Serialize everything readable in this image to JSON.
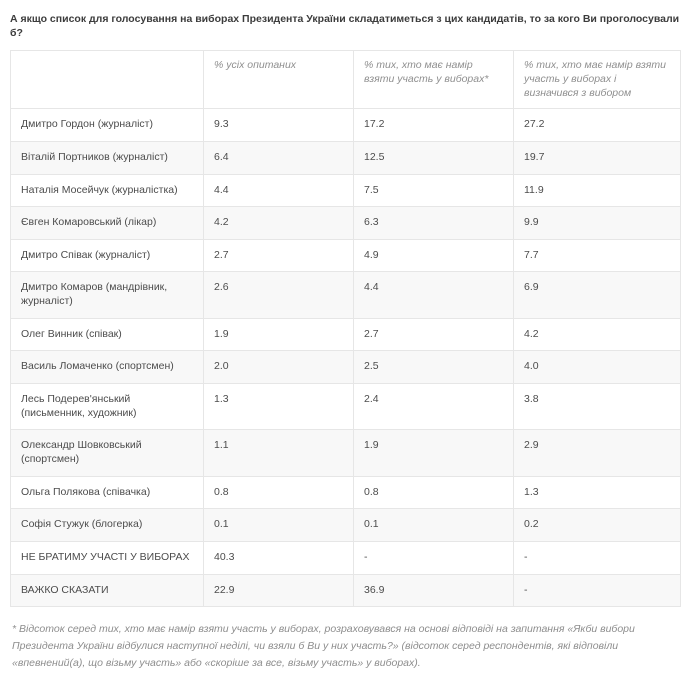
{
  "title": "А якщо список для голосування на виборах Президента України складатиметься з цих кандидатів, то за кого Ви проголосували б?",
  "table": {
    "columns": [
      "",
      "% усіх опитаних",
      "% тих, хто має намір взяти участь у виборах*",
      "% тих, хто має намір взяти участь у виборах і визначився з вибором"
    ],
    "rows": [
      [
        "Дмитро Гордон (журналіст)",
        "9.3",
        "17.2",
        "27.2"
      ],
      [
        "Віталій Портников (журналіст)",
        "6.4",
        "12.5",
        "19.7"
      ],
      [
        "Наталія Мосейчук (журналістка)",
        "4.4",
        "7.5",
        "11.9"
      ],
      [
        "Євген Комаровський (лікар)",
        "4.2",
        "6.3",
        "9.9"
      ],
      [
        "Дмитро Співак (журналіст)",
        "2.7",
        "4.9",
        "7.7"
      ],
      [
        "Дмитро Комаров (мандрівник, журналіст)",
        "2.6",
        "4.4",
        "6.9"
      ],
      [
        "Олег Винник (співак)",
        "1.9",
        "2.7",
        "4.2"
      ],
      [
        "Василь Ломаченко (спортсмен)",
        "2.0",
        "2.5",
        "4.0"
      ],
      [
        "Лесь Подерев'янський (письменник, художник)",
        "1.3",
        "2.4",
        "3.8"
      ],
      [
        "Олександр Шовковський (спортсмен)",
        "1.1",
        "1.9",
        "2.9"
      ],
      [
        "Ольга Полякова (співачка)",
        "0.8",
        "0.8",
        "1.3"
      ],
      [
        "Софія Стужук (блогерка)",
        "0.1",
        "0.1",
        "0.2"
      ],
      [
        "НЕ БРАТИМУ УЧАСТІ У ВИБОРАХ",
        "40.3",
        "-",
        "-"
      ],
      [
        "ВАЖКО СКАЗАТИ",
        "22.9",
        "36.9",
        "-"
      ]
    ]
  },
  "footnote": "* Відсоток серед тих, хто має намір взяти участь у виборах, розраховувався на основі відповіді на запитання «Якби вибори Президента України відбулися наступної неділі, чи взяли б Ви у них участь?» (відсоток серед респондентів, які відповіли «впевнений(а), що візьму участь» або «скоріше за все, візьму участь» у виборах).",
  "colors": {
    "title_text": "#3c3c3c",
    "body_text": "#4c4c4c",
    "muted_text": "#8d8d8d",
    "border": "#e6e6e6",
    "stripe": "#f8f8f8",
    "background": "#ffffff"
  }
}
